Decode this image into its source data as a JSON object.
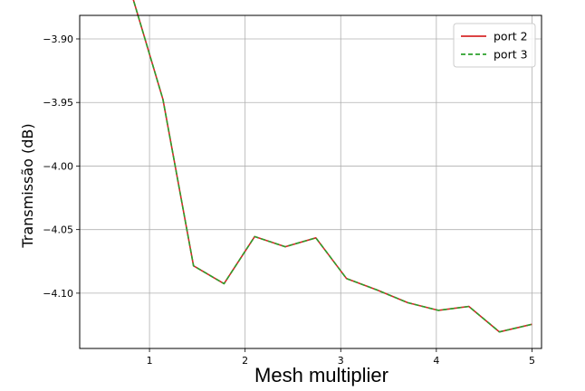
{
  "chart_data": {
    "type": "line",
    "title": "",
    "xlabel": "Mesh multiplier",
    "ylabel": "Transmissão (dB)",
    "xlim": [
      0.27,
      5.1
    ],
    "ylim": [
      -4.1435,
      -3.8815
    ],
    "x_ticks": [
      1,
      2,
      3,
      4,
      5
    ],
    "y_ticks": [
      -3.9,
      -3.95,
      -4.0,
      -4.05,
      -4.1
    ],
    "x_tick_labels": [
      "1",
      "2",
      "3",
      "4",
      "5"
    ],
    "y_tick_labels": [
      "−3.90",
      "−3.95",
      "−4.00",
      "−4.05",
      "−4.10"
    ],
    "grid": true,
    "legend_position": "top-right",
    "x": [
      0.5,
      0.82,
      1.14,
      1.46,
      1.78,
      2.1,
      2.42,
      2.74,
      3.06,
      3.38,
      3.7,
      4.02,
      4.34,
      4.66,
      5.0
    ],
    "series": [
      {
        "name": "port 2",
        "color": "#d62728",
        "dash": "solid",
        "values": [
          -3.8665,
          -3.8665,
          -3.9475,
          -4.0785,
          -4.0925,
          -4.0555,
          -4.0635,
          -4.0565,
          -4.0885,
          -4.0975,
          -4.1075,
          -4.1135,
          -4.1105,
          -4.1305,
          -4.1245
        ]
      },
      {
        "name": "port 3",
        "color": "#2ca02c",
        "dash": "dashed",
        "values": [
          -3.8665,
          -3.8665,
          -3.9475,
          -4.0785,
          -4.0925,
          -4.0555,
          -4.0635,
          -4.0565,
          -4.0885,
          -4.0975,
          -4.1075,
          -4.1135,
          -4.1105,
          -4.1305,
          -4.1245
        ]
      }
    ]
  }
}
